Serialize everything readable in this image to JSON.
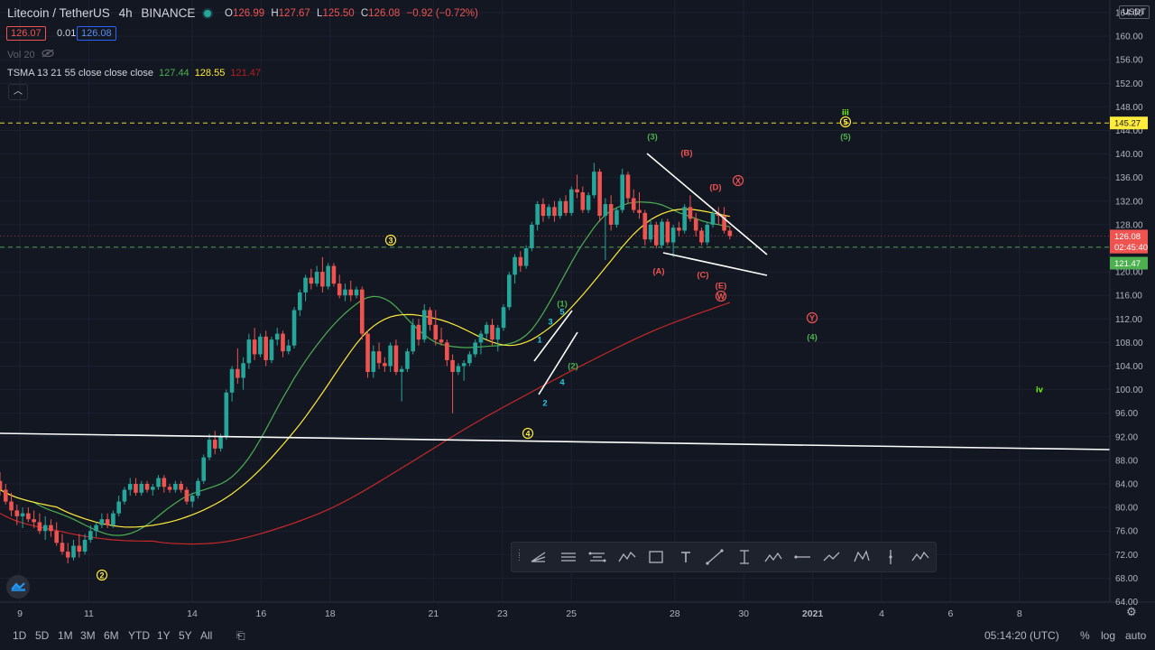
{
  "header": {
    "symbol": "Litecoin / TetherUS",
    "interval": "4h",
    "exchange": "BINANCE",
    "ohlc": [
      {
        "key": "O",
        "value": "126.99"
      },
      {
        "key": "H",
        "value": "127.67"
      },
      {
        "key": "L",
        "value": "125.50"
      },
      {
        "key": "C",
        "value": "126.08"
      }
    ],
    "change": "−0.92 (−0.72%)",
    "bid": "126.07",
    "spread": "0.01",
    "ask": "126.08",
    "volume_label": "Vol 20",
    "indicator_label": "TSMA 13 21 55 close close close",
    "indicator_values": [
      "127.44",
      "128.55",
      "121.47"
    ],
    "currency_unit": "USDT"
  },
  "chart_data": {
    "type": "candlestick",
    "price_axis": {
      "ticks": [
        64,
        68,
        72,
        76,
        80,
        84,
        88,
        92,
        96,
        100,
        104,
        108,
        112,
        116,
        120,
        124,
        128,
        132,
        136,
        140,
        144,
        148,
        152,
        156,
        160,
        164
      ],
      "tick_labels": [
        "64.00",
        "68.00",
        "72.00",
        "76.00",
        "80.00",
        "84.00",
        "88.00",
        "92.00",
        "96.00",
        "100.00",
        "104.00",
        "108.00",
        "112.00",
        "116.00",
        "120.00",
        "124.00",
        "128.00",
        "132.00",
        "136.00",
        "140.00",
        "144.00",
        "148.00",
        "152.00",
        "156.00",
        "160.00",
        "164.00"
      ],
      "ylim": [
        64,
        165
      ]
    },
    "time_axis": {
      "labels": [
        "9",
        "11",
        "14",
        "16",
        "18",
        "21",
        "23",
        "25",
        "28",
        "30",
        "2021",
        "4",
        "6",
        "8"
      ],
      "day_index": [
        0,
        2,
        5,
        7,
        9,
        12,
        14,
        16,
        19,
        21,
        23,
        25,
        27,
        29
      ]
    },
    "price_badges": [
      {
        "label": "145.27",
        "value": 145.27,
        "color": "#ffeb3b"
      },
      {
        "label": "126.08",
        "value": 126.08,
        "color": "#ef5350"
      },
      {
        "label": "02:45:40",
        "value": 124.2,
        "color": "#ef5350"
      },
      {
        "label": "121.47",
        "value": 121.47,
        "color": "#4caf50"
      }
    ],
    "horizontal_lines": [
      {
        "value": 145.27,
        "color": "#ffeb3b",
        "style": "dashed"
      },
      {
        "value": 124.2,
        "color": "#4caf50",
        "style": "dashed"
      },
      {
        "value": 126.08,
        "color": "#ef5350",
        "style": "dotted"
      }
    ],
    "candles": [
      {
        "o": 84.5,
        "h": 86.0,
        "l": 82.0,
        "c": 83.0
      },
      {
        "o": 83.0,
        "h": 84.0,
        "l": 80.5,
        "c": 81.0
      },
      {
        "o": 81.0,
        "h": 82.5,
        "l": 78.5,
        "c": 79.5
      },
      {
        "o": 79.5,
        "h": 80.5,
        "l": 77.0,
        "c": 78.5
      },
      {
        "o": 78.5,
        "h": 80.0,
        "l": 76.5,
        "c": 79.0
      },
      {
        "o": 79.0,
        "h": 80.0,
        "l": 77.5,
        "c": 78.0
      },
      {
        "o": 78.0,
        "h": 79.5,
        "l": 76.5,
        "c": 77.5
      },
      {
        "o": 77.5,
        "h": 79.0,
        "l": 75.5,
        "c": 76.0
      },
      {
        "o": 76.0,
        "h": 78.5,
        "l": 74.5,
        "c": 77.0
      },
      {
        "o": 77.0,
        "h": 78.0,
        "l": 75.0,
        "c": 76.0
      },
      {
        "o": 76.0,
        "h": 77.5,
        "l": 73.5,
        "c": 74.0
      },
      {
        "o": 74.0,
        "h": 75.5,
        "l": 72.0,
        "c": 72.5
      },
      {
        "o": 72.5,
        "h": 74.0,
        "l": 70.5,
        "c": 71.5
      },
      {
        "o": 71.5,
        "h": 74.5,
        "l": 71.0,
        "c": 73.5
      },
      {
        "o": 73.5,
        "h": 75.5,
        "l": 71.5,
        "c": 72.5
      },
      {
        "o": 72.5,
        "h": 75.5,
        "l": 72.0,
        "c": 74.5
      },
      {
        "o": 74.5,
        "h": 77.0,
        "l": 74.0,
        "c": 76.0
      },
      {
        "o": 76.0,
        "h": 77.5,
        "l": 75.0,
        "c": 77.0
      },
      {
        "o": 77.0,
        "h": 79.0,
        "l": 76.5,
        "c": 78.0
      },
      {
        "o": 78.0,
        "h": 79.0,
        "l": 76.5,
        "c": 77.0
      },
      {
        "o": 77.0,
        "h": 79.5,
        "l": 76.5,
        "c": 79.0
      },
      {
        "o": 79.0,
        "h": 82.0,
        "l": 78.5,
        "c": 81.0
      },
      {
        "o": 81.0,
        "h": 83.5,
        "l": 80.5,
        "c": 83.0
      },
      {
        "o": 83.0,
        "h": 85.0,
        "l": 82.0,
        "c": 84.0
      },
      {
        "o": 84.0,
        "h": 85.0,
        "l": 82.0,
        "c": 82.5
      },
      {
        "o": 82.5,
        "h": 84.5,
        "l": 82.0,
        "c": 84.0
      },
      {
        "o": 84.0,
        "h": 84.5,
        "l": 82.5,
        "c": 83.0
      },
      {
        "o": 83.0,
        "h": 84.0,
        "l": 82.0,
        "c": 83.5
      },
      {
        "o": 83.5,
        "h": 85.5,
        "l": 83.0,
        "c": 85.0
      },
      {
        "o": 85.0,
        "h": 85.5,
        "l": 82.5,
        "c": 83.5
      },
      {
        "o": 83.5,
        "h": 84.0,
        "l": 82.5,
        "c": 83.0
      },
      {
        "o": 83.0,
        "h": 84.5,
        "l": 82.5,
        "c": 84.0
      },
      {
        "o": 84.0,
        "h": 84.5,
        "l": 82.5,
        "c": 83.0
      },
      {
        "o": 83.0,
        "h": 83.5,
        "l": 80.5,
        "c": 81.0
      },
      {
        "o": 81.0,
        "h": 82.5,
        "l": 80.0,
        "c": 82.0
      },
      {
        "o": 82.0,
        "h": 85.0,
        "l": 81.5,
        "c": 84.5
      },
      {
        "o": 84.5,
        "h": 89.0,
        "l": 84.0,
        "c": 88.5
      },
      {
        "o": 88.5,
        "h": 92.5,
        "l": 88.0,
        "c": 91.5
      },
      {
        "o": 91.5,
        "h": 93.0,
        "l": 89.0,
        "c": 90.0
      },
      {
        "o": 90.0,
        "h": 92.5,
        "l": 89.5,
        "c": 92.0
      },
      {
        "o": 92.0,
        "h": 100.0,
        "l": 91.5,
        "c": 99.5
      },
      {
        "o": 99.5,
        "h": 104.0,
        "l": 98.0,
        "c": 103.5
      },
      {
        "o": 103.5,
        "h": 107.0,
        "l": 101.0,
        "c": 102.0
      },
      {
        "o": 102.0,
        "h": 105.5,
        "l": 100.0,
        "c": 104.5
      },
      {
        "o": 104.5,
        "h": 109.5,
        "l": 103.5,
        "c": 108.5
      },
      {
        "o": 108.5,
        "h": 110.5,
        "l": 105.0,
        "c": 106.0
      },
      {
        "o": 106.0,
        "h": 109.5,
        "l": 105.5,
        "c": 109.0
      },
      {
        "o": 109.0,
        "h": 110.0,
        "l": 104.0,
        "c": 105.0
      },
      {
        "o": 105.0,
        "h": 109.0,
        "l": 104.5,
        "c": 108.5
      },
      {
        "o": 108.5,
        "h": 110.5,
        "l": 107.5,
        "c": 109.5
      },
      {
        "o": 109.5,
        "h": 110.0,
        "l": 105.5,
        "c": 106.5
      },
      {
        "o": 106.5,
        "h": 108.5,
        "l": 106.0,
        "c": 107.5
      },
      {
        "o": 107.5,
        "h": 114.0,
        "l": 107.0,
        "c": 113.5
      },
      {
        "o": 113.5,
        "h": 117.0,
        "l": 112.5,
        "c": 116.5
      },
      {
        "o": 116.5,
        "h": 119.5,
        "l": 115.0,
        "c": 119.0
      },
      {
        "o": 119.0,
        "h": 120.5,
        "l": 117.0,
        "c": 118.0
      },
      {
        "o": 118.0,
        "h": 121.0,
        "l": 117.5,
        "c": 120.0
      },
      {
        "o": 120.0,
        "h": 122.5,
        "l": 116.5,
        "c": 117.5
      },
      {
        "o": 117.5,
        "h": 121.5,
        "l": 117.0,
        "c": 121.0
      },
      {
        "o": 121.0,
        "h": 121.5,
        "l": 117.5,
        "c": 118.0
      },
      {
        "o": 118.0,
        "h": 119.5,
        "l": 115.5,
        "c": 116.0
      },
      {
        "o": 116.0,
        "h": 118.0,
        "l": 115.0,
        "c": 117.0
      },
      {
        "o": 117.0,
        "h": 118.5,
        "l": 115.0,
        "c": 116.0
      },
      {
        "o": 116.0,
        "h": 117.5,
        "l": 115.5,
        "c": 117.0
      },
      {
        "o": 117.0,
        "h": 117.5,
        "l": 108.5,
        "c": 109.5
      },
      {
        "o": 109.5,
        "h": 110.0,
        "l": 102.0,
        "c": 103.0
      },
      {
        "o": 103.0,
        "h": 107.5,
        "l": 102.0,
        "c": 106.5
      },
      {
        "o": 106.5,
        "h": 108.0,
        "l": 103.5,
        "c": 104.5
      },
      {
        "o": 104.5,
        "h": 105.5,
        "l": 103.0,
        "c": 104.0
      },
      {
        "o": 104.0,
        "h": 108.0,
        "l": 103.0,
        "c": 107.5
      },
      {
        "o": 107.5,
        "h": 108.5,
        "l": 102.5,
        "c": 103.0
      },
      {
        "o": 103.0,
        "h": 104.0,
        "l": 98.0,
        "c": 103.5
      },
      {
        "o": 103.5,
        "h": 107.0,
        "l": 103.0,
        "c": 106.5
      },
      {
        "o": 106.5,
        "h": 112.0,
        "l": 106.0,
        "c": 111.0
      },
      {
        "o": 111.0,
        "h": 112.0,
        "l": 107.5,
        "c": 108.5
      },
      {
        "o": 108.5,
        "h": 114.5,
        "l": 108.0,
        "c": 113.5
      },
      {
        "o": 113.5,
        "h": 114.0,
        "l": 110.0,
        "c": 111.0
      },
      {
        "o": 111.0,
        "h": 113.5,
        "l": 107.5,
        "c": 108.5
      },
      {
        "o": 108.5,
        "h": 110.5,
        "l": 107.5,
        "c": 108.0
      },
      {
        "o": 108.0,
        "h": 108.5,
        "l": 104.0,
        "c": 105.0
      },
      {
        "o": 105.0,
        "h": 106.0,
        "l": 96.0,
        "c": 103.0
      },
      {
        "o": 103.0,
        "h": 104.5,
        "l": 102.5,
        "c": 104.0
      },
      {
        "o": 104.0,
        "h": 105.0,
        "l": 101.5,
        "c": 104.5
      },
      {
        "o": 104.5,
        "h": 106.5,
        "l": 104.0,
        "c": 106.0
      },
      {
        "o": 106.0,
        "h": 108.5,
        "l": 105.5,
        "c": 108.0
      },
      {
        "o": 108.0,
        "h": 110.0,
        "l": 106.0,
        "c": 109.5
      },
      {
        "o": 109.5,
        "h": 111.5,
        "l": 108.5,
        "c": 111.0
      },
      {
        "o": 111.0,
        "h": 112.0,
        "l": 107.5,
        "c": 108.5
      },
      {
        "o": 108.5,
        "h": 111.0,
        "l": 106.5,
        "c": 110.5
      },
      {
        "o": 110.5,
        "h": 114.5,
        "l": 110.0,
        "c": 114.0
      },
      {
        "o": 114.0,
        "h": 120.0,
        "l": 113.5,
        "c": 119.5
      },
      {
        "o": 119.5,
        "h": 123.0,
        "l": 118.0,
        "c": 122.5
      },
      {
        "o": 122.5,
        "h": 123.5,
        "l": 120.0,
        "c": 121.0
      },
      {
        "o": 121.0,
        "h": 124.5,
        "l": 120.5,
        "c": 124.0
      },
      {
        "o": 124.0,
        "h": 128.5,
        "l": 123.5,
        "c": 128.0
      },
      {
        "o": 128.0,
        "h": 132.0,
        "l": 127.0,
        "c": 131.5
      },
      {
        "o": 131.5,
        "h": 132.5,
        "l": 128.5,
        "c": 129.5
      },
      {
        "o": 129.5,
        "h": 131.5,
        "l": 129.0,
        "c": 131.0
      },
      {
        "o": 131.0,
        "h": 132.0,
        "l": 128.5,
        "c": 129.5
      },
      {
        "o": 129.5,
        "h": 132.5,
        "l": 129.0,
        "c": 132.0
      },
      {
        "o": 132.0,
        "h": 133.0,
        "l": 129.5,
        "c": 130.0
      },
      {
        "o": 130.0,
        "h": 134.5,
        "l": 129.5,
        "c": 134.0
      },
      {
        "o": 134.0,
        "h": 136.5,
        "l": 132.5,
        "c": 133.5
      },
      {
        "o": 133.5,
        "h": 134.5,
        "l": 130.0,
        "c": 130.5
      },
      {
        "o": 130.5,
        "h": 133.5,
        "l": 130.0,
        "c": 133.0
      },
      {
        "o": 133.0,
        "h": 138.5,
        "l": 132.5,
        "c": 137.0
      },
      {
        "o": 137.0,
        "h": 137.5,
        "l": 128.5,
        "c": 129.5
      },
      {
        "o": 129.5,
        "h": 132.5,
        "l": 122.0,
        "c": 131.5
      },
      {
        "o": 131.5,
        "h": 133.0,
        "l": 127.0,
        "c": 128.0
      },
      {
        "o": 128.0,
        "h": 131.0,
        "l": 127.5,
        "c": 130.5
      },
      {
        "o": 130.5,
        "h": 137.5,
        "l": 130.0,
        "c": 136.5
      },
      {
        "o": 136.5,
        "h": 137.0,
        "l": 131.5,
        "c": 132.5
      },
      {
        "o": 132.5,
        "h": 134.0,
        "l": 130.0,
        "c": 130.5
      },
      {
        "o": 130.5,
        "h": 133.5,
        "l": 129.0,
        "c": 130.0
      },
      {
        "o": 130.0,
        "h": 130.5,
        "l": 124.5,
        "c": 125.5
      },
      {
        "o": 125.5,
        "h": 129.0,
        "l": 125.0,
        "c": 128.0
      },
      {
        "o": 128.0,
        "h": 128.5,
        "l": 124.0,
        "c": 124.5
      },
      {
        "o": 124.5,
        "h": 129.0,
        "l": 124.0,
        "c": 128.5
      },
      {
        "o": 128.5,
        "h": 129.0,
        "l": 124.5,
        "c": 125.0
      },
      {
        "o": 125.0,
        "h": 128.0,
        "l": 122.5,
        "c": 127.5
      },
      {
        "o": 127.5,
        "h": 128.5,
        "l": 126.0,
        "c": 127.0
      },
      {
        "o": 127.0,
        "h": 131.5,
        "l": 126.5,
        "c": 131.0
      },
      {
        "o": 131.0,
        "h": 133.0,
        "l": 128.5,
        "c": 129.0
      },
      {
        "o": 129.0,
        "h": 130.0,
        "l": 126.0,
        "c": 127.0
      },
      {
        "o": 127.0,
        "h": 127.5,
        "l": 124.5,
        "c": 125.0
      },
      {
        "o": 125.0,
        "h": 128.5,
        "l": 124.5,
        "c": 128.0
      },
      {
        "o": 128.0,
        "h": 130.5,
        "l": 127.5,
        "c": 130.0
      },
      {
        "o": 130.0,
        "h": 131.0,
        "l": 128.0,
        "c": 129.5
      },
      {
        "o": 129.5,
        "h": 131.0,
        "l": 126.5,
        "c": 127.0
      },
      {
        "o": 127.0,
        "h": 127.67,
        "l": 125.5,
        "c": 126.08
      }
    ],
    "moving_averages": [
      {
        "name": "TSMA 13",
        "period": 13,
        "color": "#4caf50"
      },
      {
        "name": "TSMA 21",
        "period": 21,
        "color": "#ffeb3b"
      },
      {
        "name": "TSMA 55",
        "period": 55,
        "color": "#c62828"
      }
    ],
    "wave_labels": [
      {
        "text": "2",
        "x": 113,
        "y": 637,
        "color": "#ffeb3b",
        "circled": true
      },
      {
        "text": "3",
        "x": 433,
        "y": 266,
        "color": "#ffeb3b",
        "circled": true
      },
      {
        "text": "4",
        "x": 585,
        "y": 480,
        "color": "#ffeb3b",
        "circled": true
      },
      {
        "text": "5",
        "x": 937,
        "y": 135,
        "color": "#ffeb3b",
        "circled": true
      },
      {
        "text": "iii",
        "x": 937,
        "y": 124,
        "color": "#76ff03",
        "circled": false
      },
      {
        "text": "iv",
        "x": 1152,
        "y": 431,
        "color": "#76ff03",
        "circled": false
      },
      {
        "text": "(1)",
        "x": 623,
        "y": 336,
        "color": "#4caf50",
        "circled": false
      },
      {
        "text": "(2)",
        "x": 635,
        "y": 405,
        "color": "#4caf50",
        "circled": false
      },
      {
        "text": "(3)",
        "x": 723,
        "y": 151,
        "color": "#4caf50",
        "circled": false
      },
      {
        "text": "(4)",
        "x": 900,
        "y": 373,
        "color": "#4caf50",
        "circled": false
      },
      {
        "text": "(5)",
        "x": 937,
        "y": 151,
        "color": "#4caf50",
        "circled": false
      },
      {
        "text": "1",
        "x": 598,
        "y": 376,
        "color": "#26c6da",
        "circled": false
      },
      {
        "text": "2",
        "x": 604,
        "y": 446,
        "color": "#26c6da",
        "circled": false
      },
      {
        "text": "3",
        "x": 610,
        "y": 356,
        "color": "#26c6da",
        "circled": false
      },
      {
        "text": "4",
        "x": 623,
        "y": 423,
        "color": "#26c6da",
        "circled": false
      },
      {
        "text": "5",
        "x": 623,
        "y": 345,
        "color": "#26c6da",
        "circled": false
      },
      {
        "text": "(A)",
        "x": 730,
        "y": 300,
        "color": "#ef5350",
        "circled": false
      },
      {
        "text": "(B)",
        "x": 761,
        "y": 169,
        "color": "#ef5350",
        "circled": false
      },
      {
        "text": "(C)",
        "x": 779,
        "y": 304,
        "color": "#ef5350",
        "circled": false
      },
      {
        "text": "(D)",
        "x": 793,
        "y": 207,
        "color": "#ef5350",
        "circled": false
      },
      {
        "text": "(E)",
        "x": 799,
        "y": 316,
        "color": "#ef5350",
        "circled": false
      },
      {
        "text": "X",
        "x": 818,
        "y": 200,
        "color": "#ef5350",
        "circled": true
      },
      {
        "text": "W",
        "x": 799,
        "y": 328,
        "color": "#ef5350",
        "circled": true
      },
      {
        "text": "Y",
        "x": 900,
        "y": 352,
        "color": "#ef5350",
        "circled": true
      }
    ],
    "trend_lines": [
      {
        "x1": 0,
        "y1": 480,
        "x2": 1230,
        "y2": 498,
        "color": "#ffffff"
      },
      {
        "x1": 717,
        "y1": 170,
        "x2": 850,
        "y2": 282,
        "color": "#ffffff"
      },
      {
        "x1": 735,
        "y1": 280,
        "x2": 850,
        "y2": 305,
        "color": "#ffffff"
      },
      {
        "x1": 592,
        "y1": 400,
        "x2": 634,
        "y2": 344,
        "color": "#ffffff"
      },
      {
        "x1": 597,
        "y1": 437,
        "x2": 640,
        "y2": 368,
        "color": "#ffffff"
      }
    ]
  },
  "range_buttons": [
    "1D",
    "5D",
    "1M",
    "3M",
    "6M",
    "YTD",
    "1Y",
    "5Y",
    "All"
  ],
  "clock": "05:14:20 (UTC)",
  "scale_options": [
    "%",
    "log",
    "auto"
  ],
  "drawing_toolbar": {
    "tools": [
      "pitchfork-tool",
      "parallel-channel-tool",
      "regression-channel-tool",
      "elliott-wave-tool",
      "rectangle-tool",
      "text-tool",
      "trend-line-tool",
      "price-range-tool",
      "abcd-pattern-tool",
      "horizontal-ray-tool",
      "path-tool",
      "xabcd-pattern-tool",
      "vertical-line-tool",
      "cypher-pattern-tool"
    ]
  }
}
